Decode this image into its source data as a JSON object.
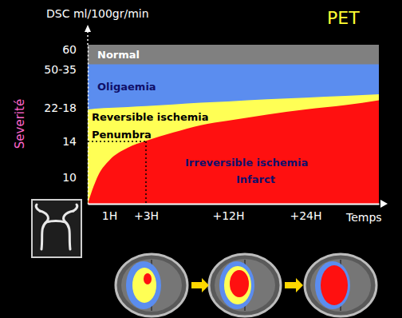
{
  "chart_data": {
    "type": "area",
    "title": "PET",
    "ylabel": "DSC ml/100gr/min",
    "xlabel": "Temps",
    "annotations": [
      "Severité",
      "Penumbra",
      "Infarct"
    ],
    "x": [
      0,
      0.2,
      0.5,
      1,
      2,
      3,
      6,
      9,
      12,
      18,
      24,
      30,
      35
    ],
    "xlim": [
      0,
      35
    ],
    "xticks": [
      {
        "value": 1,
        "label": "1H"
      },
      {
        "value": 3,
        "label": "+3H"
      },
      {
        "value": 12,
        "label": "+12H"
      },
      {
        "value": 24,
        "label": "+24H"
      }
    ],
    "ylim": [
      0,
      62
    ],
    "yticks": [
      10,
      14,
      {
        "value": 20,
        "label": "22-18"
      },
      {
        "value": 42.5,
        "label": "50-35"
      },
      60
    ],
    "grid": false,
    "stacked": false,
    "reference": {
      "x": 3,
      "y": 14
    },
    "series": [
      {
        "name": "Normal",
        "color": "#808080",
        "values": [
          62,
          62,
          62,
          62,
          62,
          62,
          62,
          62,
          62,
          62,
          62,
          62,
          62
        ]
      },
      {
        "name": "Oligaemia",
        "color": "#5b8def",
        "values": [
          47,
          47,
          47,
          47,
          47,
          47,
          47,
          47,
          47,
          47,
          47,
          47,
          47
        ]
      },
      {
        "name": "Reversible ischemia",
        "color": "#ffff55",
        "values": [
          19.7,
          19.8,
          19.9,
          20,
          20.5,
          21,
          22,
          23,
          23.8,
          25,
          26,
          27,
          28
        ]
      },
      {
        "name": "Irreversible ischemia",
        "color": "#ff1010",
        "values": [
          0,
          5,
          10.3,
          11.9,
          13.3,
          14.1,
          15.6,
          16.9,
          17.7,
          18.8,
          19.7,
          21.6,
          24.5
        ]
      }
    ]
  }
}
